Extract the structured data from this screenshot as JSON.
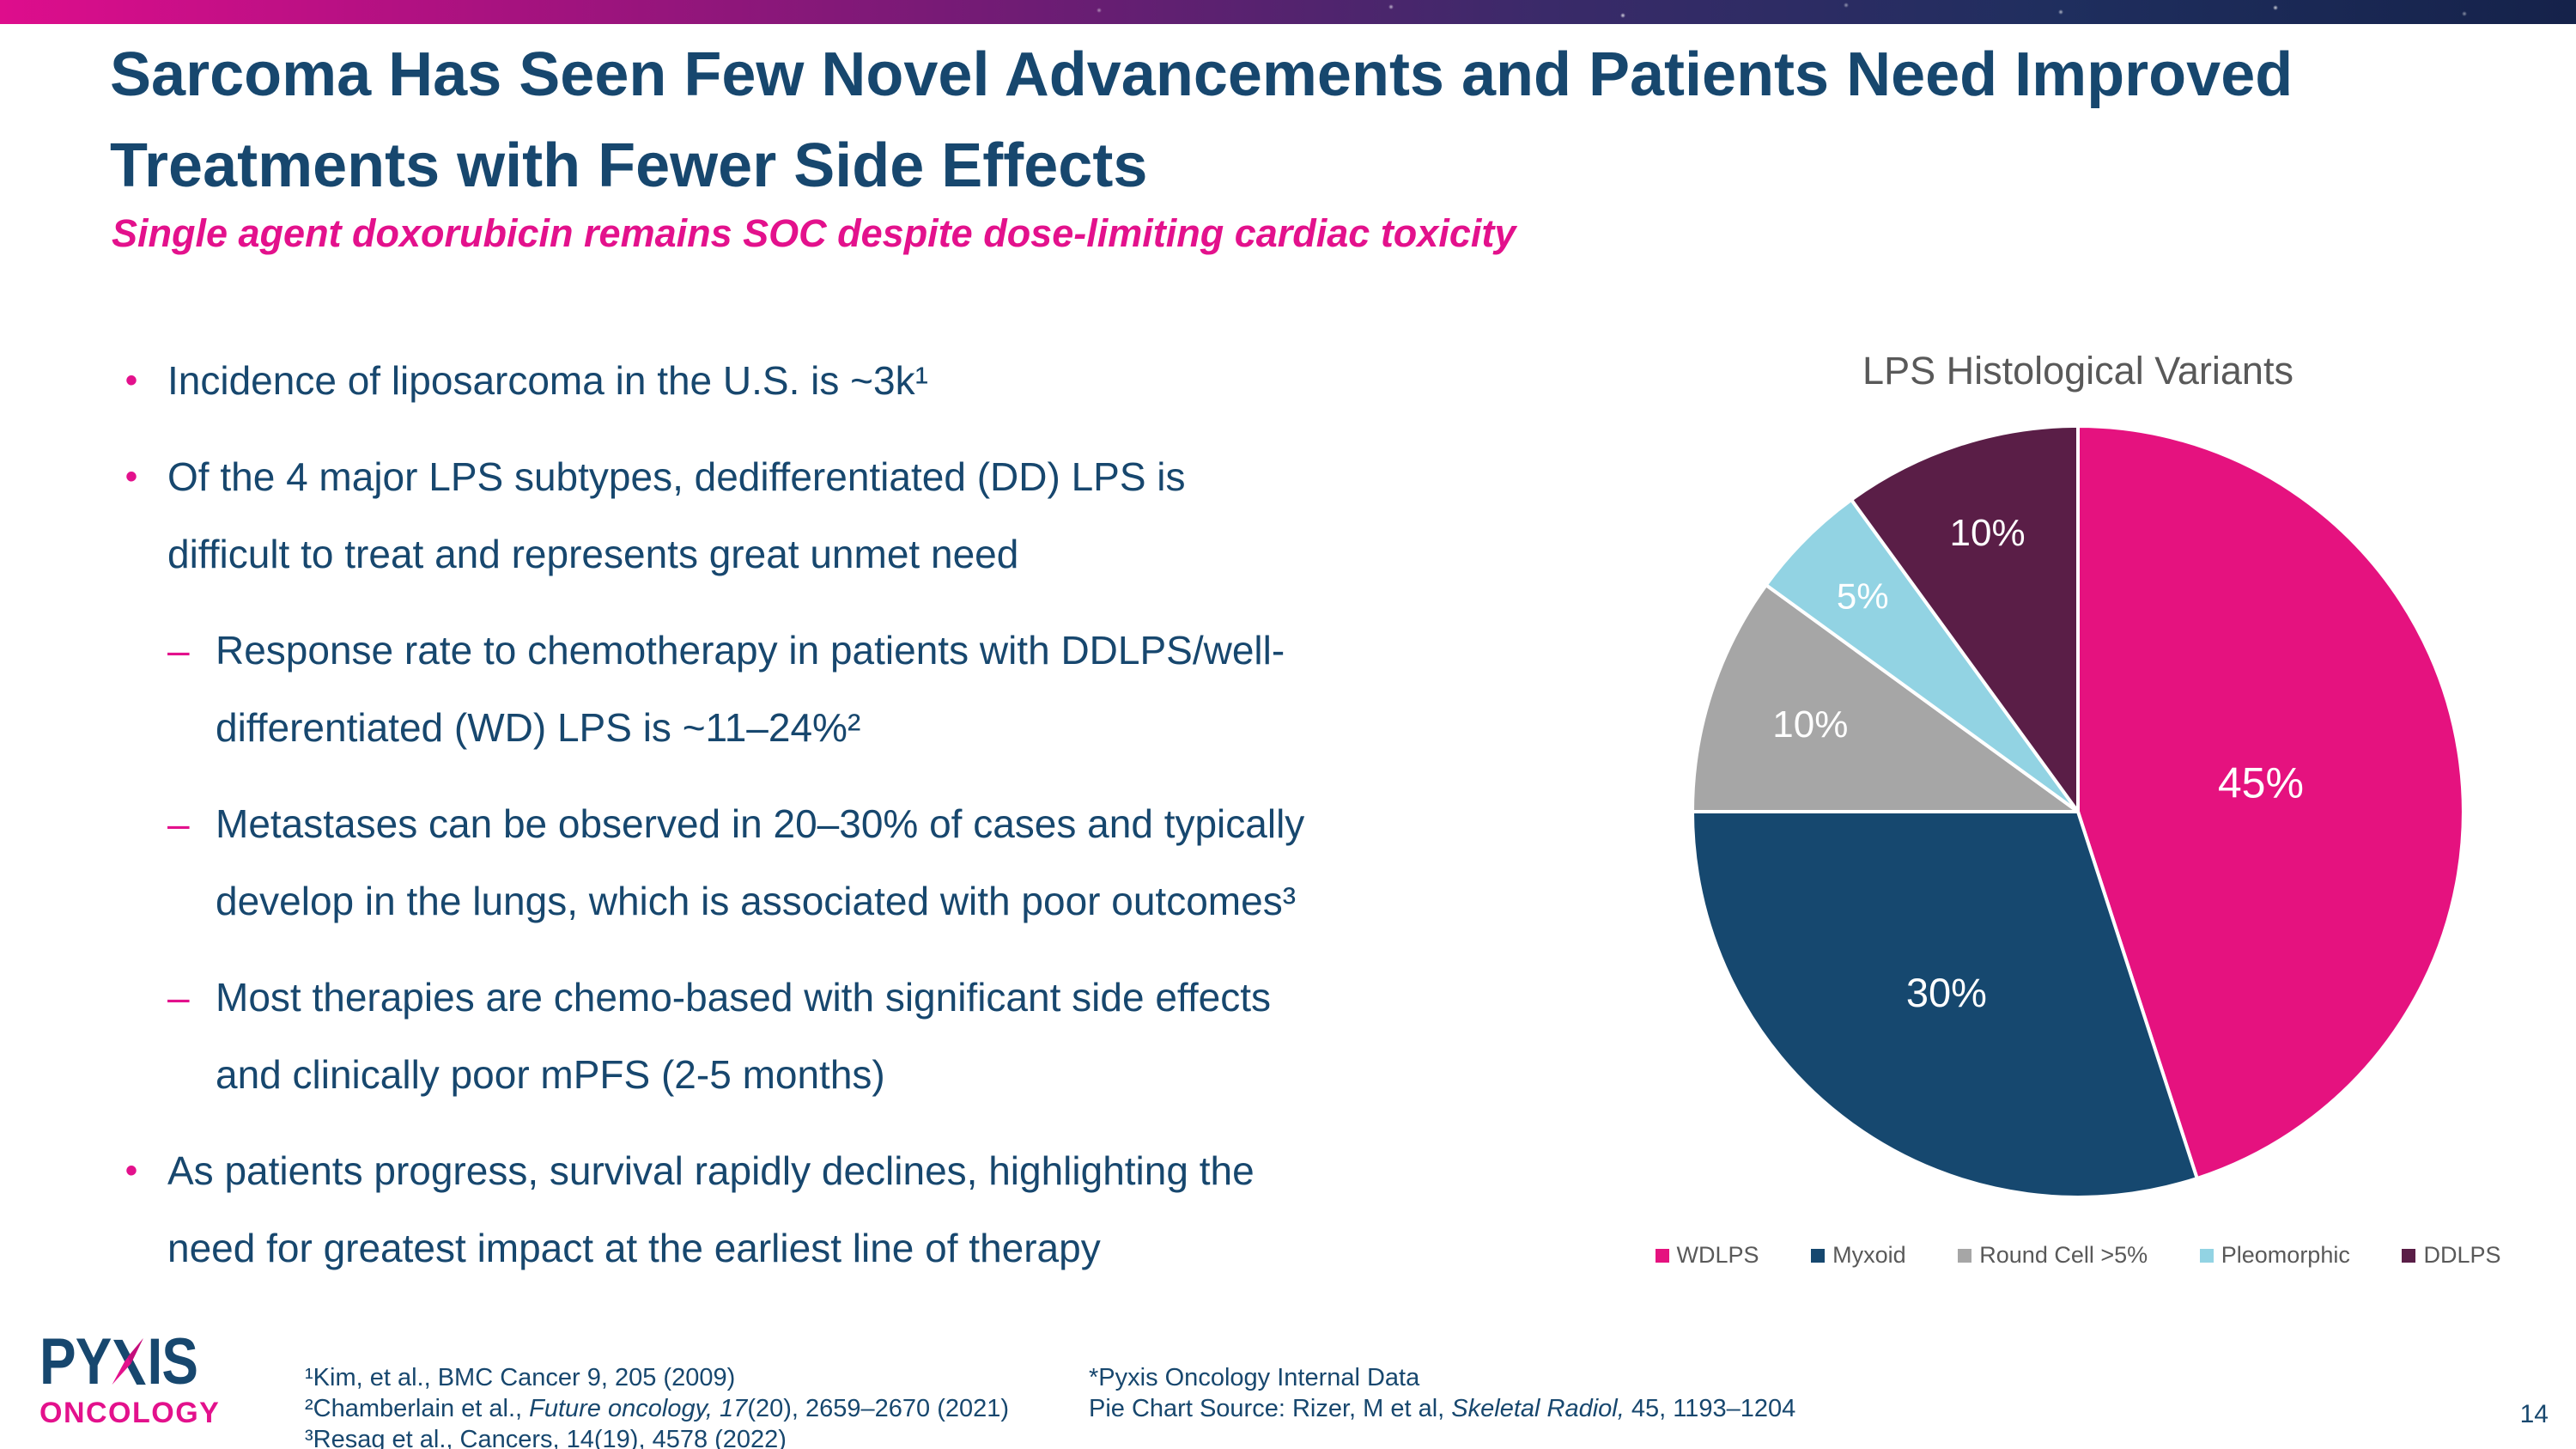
{
  "palette": {
    "navy": "#17476E",
    "magenta": "#E3118C",
    "gray_text": "#595959",
    "topbar_gradient": [
      "#DE0D8C",
      "#A6127F",
      "#6E1C74",
      "#3A2A69",
      "#1F2E5E",
      "#15224A"
    ],
    "page_background": "#FFFFFF"
  },
  "header": {
    "title": "Sarcoma Has Seen Few Novel Advancements and Patients Need Improved\nTreatments with Fewer Side Effects",
    "subtitle": "Single agent doxorubicin remains SOC despite dose-limiting cardiac toxicity"
  },
  "bullet_markers": {
    "l1": "•",
    "l2": "–"
  },
  "bullets": [
    {
      "level": 1,
      "text": "Incidence of liposarcoma in the U.S. is ~3k¹"
    },
    {
      "level": 1,
      "text": "Of the 4 major LPS subtypes, dedifferentiated (DD) LPS is\ndifficult to treat and represents great unmet need"
    },
    {
      "level": 2,
      "text": "Response rate to chemotherapy in patients with DDLPS/well-\ndifferentiated (WD) LPS is ~11–24%²"
    },
    {
      "level": 2,
      "text": "Metastases can be observed in 20–30% of cases and typically\ndevelop in the lungs, which is associated with poor outcomes³"
    },
    {
      "level": 2,
      "text": "Most therapies are chemo-based with significant side effects\nand clinically poor mPFS (2-5 months)"
    },
    {
      "level": 1,
      "text": "As patients progress, survival rapidly declines, highlighting the\nneed for greatest impact at the earliest line of therapy"
    }
  ],
  "chart_data": {
    "type": "pie",
    "title": "LPS Histological Variants",
    "categories": [
      "WDLPS",
      "Myxoid",
      "Round Cell >5%",
      "Pleomorphic",
      "DDLPS"
    ],
    "values": [
      45,
      30,
      10,
      5,
      10
    ],
    "labels": [
      "45%",
      "30%",
      "10%",
      "5%",
      "10%"
    ],
    "colors": [
      "#E5127F",
      "#16486F",
      "#A6A6A6",
      "#92D3E3",
      "#5A1E47"
    ],
    "label_color": "#FFFFFF",
    "label_radius": [
      0.48,
      0.58,
      0.73,
      0.79,
      0.76
    ],
    "label_sizes": [
      50,
      47,
      44,
      42,
      44
    ],
    "start_angle_deg": 0,
    "direction": "clockwise",
    "slice_border_color": "#FFFFFF",
    "legend_position": "bottom"
  },
  "footer": {
    "logo": {
      "p1": "PY",
      "x": "X",
      "p2": "IS",
      "sub": "ONCOLOGY"
    },
    "footnotes_left": [
      [
        {
          "t": "¹Kim, et al., BMC Cancer 9, 205 (2009)"
        }
      ],
      [
        {
          "t": "²Chamberlain et al., "
        },
        {
          "t": "Future oncology, 17",
          "i": true
        },
        {
          "t": "(20), 2659–2670 (2021)"
        }
      ],
      [
        {
          "t": "³Resag et al., Cancers, 14(19), 4578 (2022)"
        }
      ]
    ],
    "footnotes_right": [
      [
        {
          "t": "*Pyxis Oncology Internal Data"
        }
      ],
      [
        {
          "t": "Pie Chart Source: Rizer, M et al, "
        },
        {
          "t": "Skeletal Radiol,",
          "i": true
        },
        {
          "t": " 45, 1193–1204"
        }
      ]
    ],
    "page_number": "14"
  }
}
